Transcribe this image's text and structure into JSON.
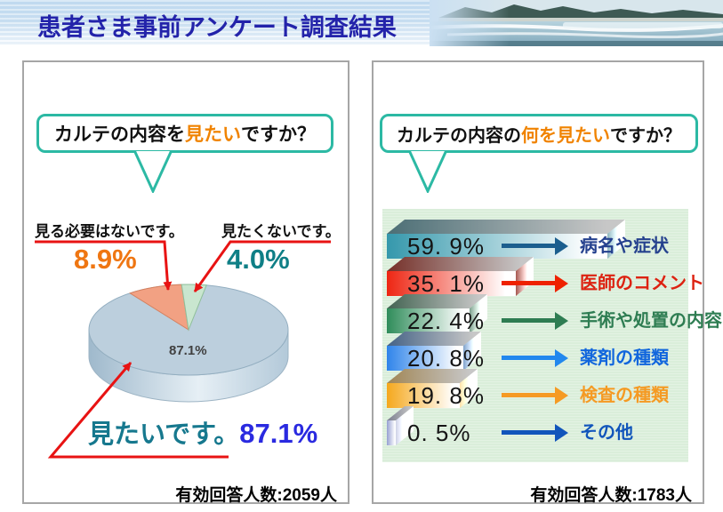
{
  "header": {
    "title": "患者さま事前アンケート調査結果"
  },
  "colors": {
    "title": "#2323aa",
    "bubble_border": "#2cb9a4",
    "question_highlight": "#f08300",
    "callout_red": "#e81313",
    "pct_no_need": "#ef7612",
    "pct_dont_want": "#0f7f86",
    "want_text": "#16788e",
    "want_pct": "#2a2ae0",
    "panel_border": "#a6a6a6",
    "bar_chart_background": "#daeeda"
  },
  "left_panel": {
    "question": {
      "pre": "カルテの内容を",
      "highlight": "見たい",
      "post": "ですか？"
    },
    "callout_no_need": {
      "label": "見る必要はないです。",
      "pct": "8.9%"
    },
    "callout_dont_want": {
      "label": "見たくないです。",
      "pct": "4.0%"
    },
    "callout_want": {
      "label": "見たいです。",
      "pct": "87.1%"
    },
    "pie_inner_label": "87.1%",
    "footer": "有効回答人数:2059人"
  },
  "right_panel": {
    "question": {
      "pre": "カルテの内容の",
      "highlight": "何を見たい",
      "post": "ですか？"
    },
    "rows": [
      {
        "pct": "59. 9%",
        "label": "病名や症状",
        "color": "#1b5e8e",
        "label_color": "#25418e"
      },
      {
        "pct": "35. 1%",
        "label": "医師のコメント",
        "color": "#ee2200",
        "label_color": "#dd2211"
      },
      {
        "pct": "22. 4%",
        "label": "手術や処置の内容",
        "color": "#2e7d52",
        "label_color": "#2e7d52"
      },
      {
        "pct": "20. 8%",
        "label": "薬剤の種類",
        "color": "#2288ee",
        "label_color": "#1166dd"
      },
      {
        "pct": "19. 8%",
        "label": "検査の種類",
        "color": "#f59a23",
        "label_color": "#f59a23"
      },
      {
        "pct": "0. 5%",
        "label": "その他",
        "color": "#1155bb",
        "label_color": "#1155bb"
      }
    ],
    "footer": "有効回答人数:1783人"
  },
  "chart_data": [
    {
      "type": "pie",
      "title": "カルテの内容を見たいですか？",
      "labels": [
        "見たいです。",
        "見る必要はないです。",
        "見たくないです。"
      ],
      "values": [
        87.1,
        8.9,
        4.0
      ],
      "unit": "%",
      "colors": [
        "#bccfdd",
        "#f2a183",
        "#c9e6cf"
      ],
      "style": "3d-pie",
      "note": "有効回答人数:2059人"
    },
    {
      "type": "bar",
      "orientation": "horizontal",
      "title": "カルテの内容の何を見たいですか？",
      "categories": [
        "病名や症状",
        "医師のコメント",
        "手術や処置の内容",
        "薬剤の種類",
        "検査の種類",
        "その他"
      ],
      "values": [
        59.9,
        35.1,
        22.4,
        20.8,
        19.8,
        0.5
      ],
      "unit": "%",
      "colors": [
        "#3598ac",
        "#ee2613",
        "#2f8c5a",
        "#2f84ea",
        "#f5a81d",
        "#96a0d2"
      ],
      "xlim": [
        0,
        65
      ],
      "grid": false,
      "legend": false,
      "note": "有効回答人数:1783人"
    }
  ]
}
